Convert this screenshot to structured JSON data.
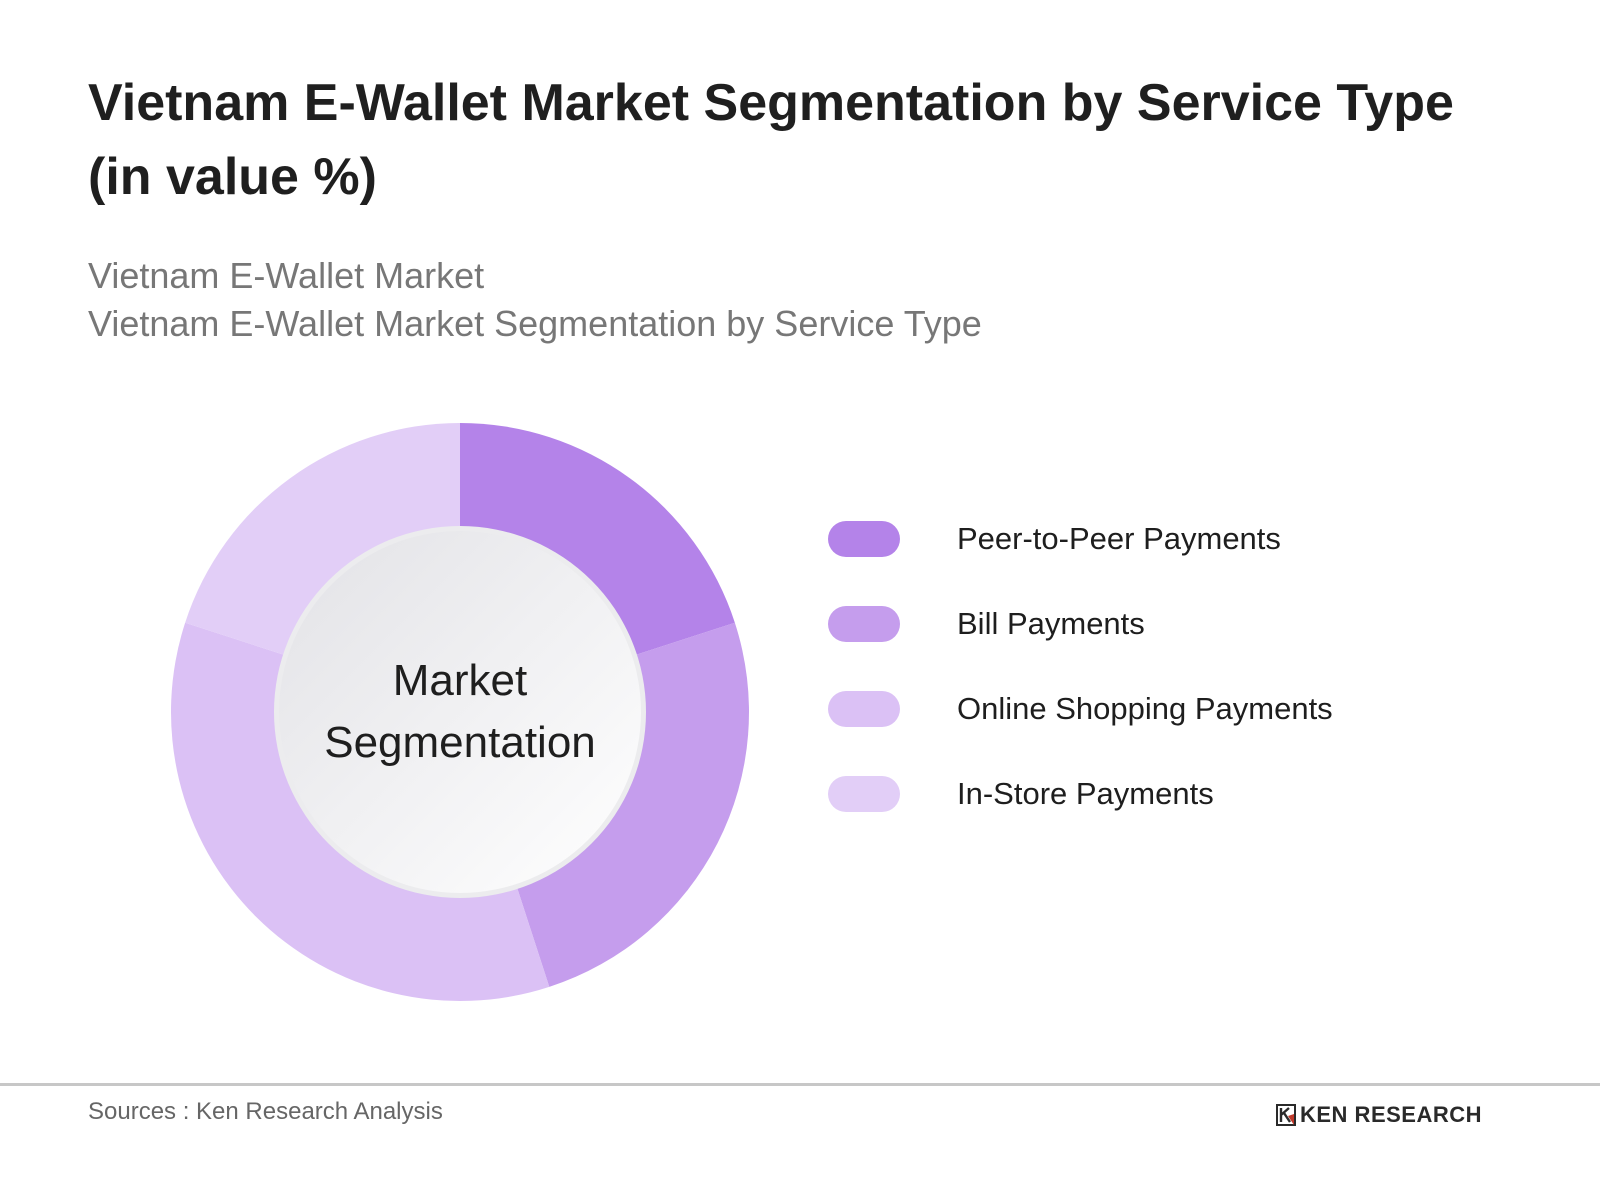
{
  "header": {
    "title": "Vietnam E-Wallet Market Segmentation by Service Type (in value %)",
    "subtitle_line1": "Vietnam E-Wallet Market",
    "subtitle_line2": "Vietnam E-Wallet Market Segmentation by Service Type"
  },
  "center_label": {
    "line1": "Market",
    "line2": "Segmentation"
  },
  "legend": {
    "items": [
      {
        "label": "Peer-to-Peer Payments",
        "color": "#b483e9"
      },
      {
        "label": "Bill Payments",
        "color": "#c59ded"
      },
      {
        "label": "Online Shopping Payments",
        "color": "#dbc1f5"
      },
      {
        "label": "In-Store Payments",
        "color": "#e2cef7"
      }
    ]
  },
  "footer": {
    "sources": "Sources : Ken Research Analysis",
    "logo_text": "KEN RESEARCH"
  },
  "chart_data": {
    "type": "pie",
    "variant": "donut",
    "title": "Vietnam E-Wallet Market Segmentation by Service Type (in value %)",
    "subtitle": "Vietnam E-Wallet Market / Vietnam E-Wallet Market Segmentation by Service Type",
    "center_text": "Market Segmentation",
    "categories": [
      "Peer-to-Peer Payments",
      "Bill Payments",
      "Online Shopping Payments",
      "In-Store Payments"
    ],
    "values": [
      20,
      25,
      35,
      20
    ],
    "unit": "%",
    "colors": [
      "#b483e9",
      "#c59ded",
      "#dbc1f5",
      "#e2cef7"
    ],
    "start_angle": "12 o'clock, clockwise",
    "legend_position": "right",
    "data_labels_shown": false
  }
}
